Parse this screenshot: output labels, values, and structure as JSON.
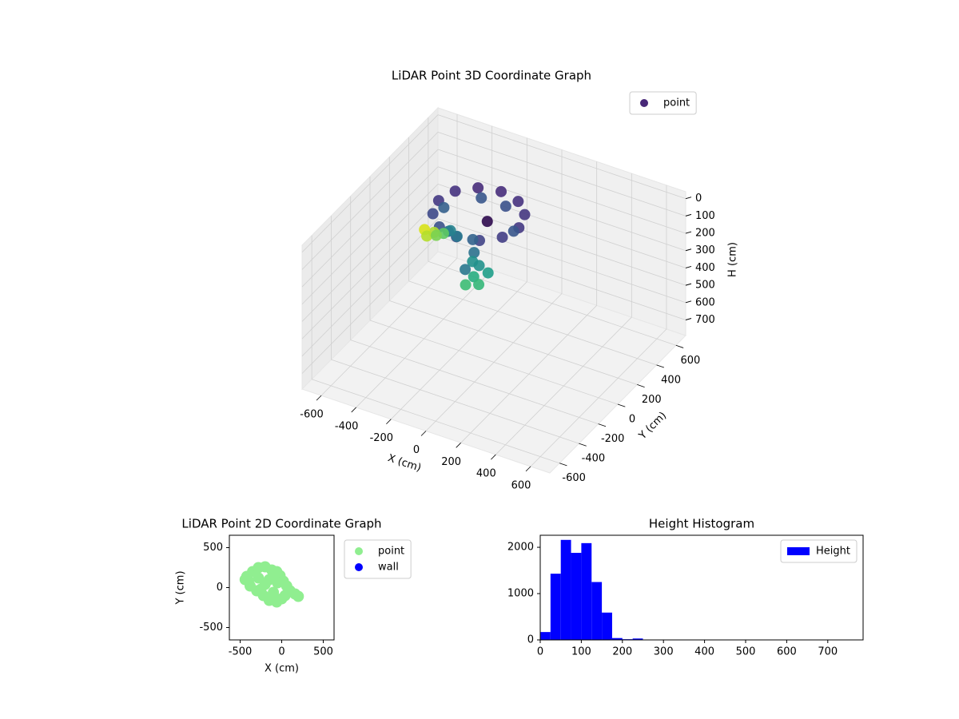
{
  "chart_data": [
    {
      "type": "scatter3d",
      "title": "LiDAR Point 3D Coordinate Graph",
      "xlabel": "X (cm)",
      "ylabel": "Y (cm)",
      "zlabel": "H (cm)",
      "xlim": [
        -710,
        710
      ],
      "ylim": [
        -700,
        700
      ],
      "zlim": [
        790,
        -40
      ],
      "xticks": [
        -600,
        -400,
        -200,
        0,
        200,
        400,
        600
      ],
      "yticks": [
        -600,
        -400,
        -200,
        0,
        200,
        400,
        600
      ],
      "zticks": [
        0,
        100,
        200,
        300,
        400,
        500,
        600,
        700
      ],
      "legend": "upper right",
      "series": [
        {
          "name": "point",
          "color": "#482878",
          "x": [
            110,
            79,
            -5,
            -120,
            -235,
            -319,
            -350,
            -319,
            -235,
            -120,
            -5,
            79,
            80,
            -60,
            -200,
            -320,
            -200,
            -60,
            -80,
            -40,
            -100,
            -60,
            -20,
            -120,
            -90,
            0,
            -200,
            -260,
            -300,
            -360,
            -420,
            -390,
            -330,
            -60
          ],
          "y": [
            60,
            175,
            259,
            290,
            259,
            175,
            60,
            -55,
            -139,
            -170,
            -139,
            -55,
            60,
            230,
            230,
            60,
            -110,
            -110,
            -60,
            -80,
            -40,
            -100,
            -120,
            -80,
            -130,
            -60,
            -20,
            20,
            20,
            30,
            40,
            10,
            0,
            40
          ],
          "values": [
            10,
            10,
            10,
            10,
            10,
            10,
            10,
            10,
            10,
            10,
            10,
            10,
            40,
            40,
            40,
            40,
            40,
            40,
            150,
            200,
            220,
            260,
            280,
            250,
            300,
            240,
            120,
            130,
            160,
            180,
            190,
            200,
            170,
            20
          ],
          "colors": [
            "#443983",
            "#453781",
            "#46327e",
            "#472d7b",
            "#472c7a",
            "#46337f",
            "#443983",
            "#3e4989",
            "#3b528b",
            "#3e4a89",
            "#414487",
            "#433e85",
            "#39568c",
            "#3b518b",
            "#39568c",
            "#35608d",
            "#31688e",
            "#33638d",
            "#2c728e",
            "#21918c",
            "#21918c",
            "#27ad81",
            "#35b779",
            "#2a788e",
            "#3dbc74",
            "#1f9e89",
            "#2a788e",
            "#26828e",
            "#5ec962",
            "#addc30",
            "#d8e219",
            "#b5de2b",
            "#7ad151",
            "#2d0a4e"
          ]
        }
      ]
    },
    {
      "type": "scatter",
      "title": "LiDAR Point 2D Coordinate Graph",
      "xlabel": "X (cm)",
      "ylabel": "Y (cm)",
      "xlim": [
        -630,
        630
      ],
      "ylim": [
        -655,
        655
      ],
      "xticks": [
        -500,
        0,
        500
      ],
      "yticks": [
        -500,
        0,
        500
      ],
      "legend": "outside right",
      "series": [
        {
          "name": "point",
          "color": "#90ee90",
          "x": [
            -400,
            -420,
            -350,
            -280,
            -200,
            -120,
            -60,
            -20,
            20,
            60,
            100,
            160,
            200,
            -380,
            -300,
            -220,
            -150,
            -60,
            0,
            -100,
            -200,
            -280,
            -150,
            -50,
            -250,
            -100,
            40,
            -440
          ],
          "y": [
            80,
            140,
            200,
            250,
            260,
            220,
            200,
            150,
            80,
            20,
            -40,
            -80,
            -110,
            20,
            -40,
            -100,
            -160,
            -180,
            -140,
            -60,
            40,
            120,
            100,
            60,
            -20,
            150,
            -100,
            100
          ]
        },
        {
          "name": "wall",
          "color": "#0000ff",
          "x": [],
          "y": []
        }
      ]
    },
    {
      "type": "hist",
      "title": "Height Histogram",
      "color": "#0000ff",
      "legend": "upper right",
      "series_name": "Height",
      "bins": [
        0,
        25,
        50,
        75,
        100,
        125,
        150,
        175,
        200,
        225,
        250,
        275,
        300,
        325,
        350,
        375,
        400,
        425,
        450,
        475,
        500,
        525,
        550,
        575,
        600,
        625,
        650,
        675,
        700,
        725,
        750,
        775
      ],
      "counts": [
        170,
        1430,
        2160,
        1880,
        2090,
        1250,
        590,
        40,
        15,
        30,
        0,
        0,
        0,
        0,
        0,
        0,
        0,
        0,
        0,
        0,
        0,
        0,
        0,
        0,
        0,
        0,
        0,
        0,
        0,
        0,
        0
      ],
      "xlim": [
        0,
        786
      ],
      "ylim": [
        0,
        2260
      ],
      "xticks": [
        0,
        100,
        200,
        300,
        400,
        500,
        600,
        700
      ],
      "yticks": [
        0,
        1000,
        2000
      ]
    }
  ]
}
